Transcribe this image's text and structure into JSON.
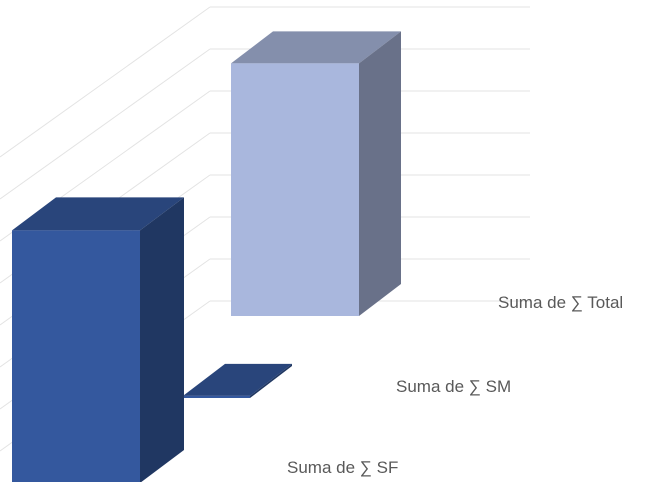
{
  "chart_data": {
    "type": "bar",
    "style": "3d-column",
    "categories": [
      "Suma de ∑ Total",
      "Suma de ∑ SM",
      "Suma de ∑ SF"
    ],
    "values": [
      60,
      0.5,
      60
    ],
    "colors": [
      "#A9B7DD",
      "#34589E",
      "#34589E"
    ],
    "grid": true,
    "legend": "none"
  }
}
